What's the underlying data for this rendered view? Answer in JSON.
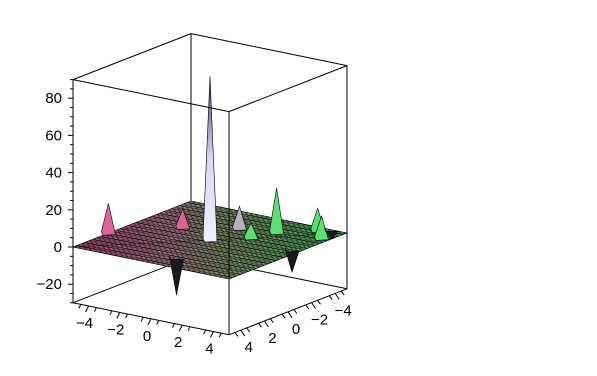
{
  "chart_data": {
    "type": "surface3d",
    "title": "",
    "xlabel": "",
    "ylabel": "",
    "zlabel": "",
    "x_range": [
      -5,
      5
    ],
    "y_range": [
      -5,
      5
    ],
    "z_range": [
      -30,
      90
    ],
    "grid": true,
    "z_ticks": [
      {
        "value": 80,
        "label": "80"
      },
      {
        "value": 60,
        "label": "60"
      },
      {
        "value": 40,
        "label": "40"
      },
      {
        "value": 20,
        "label": "20"
      },
      {
        "value": 0,
        "label": "0"
      },
      {
        "value": -20,
        "label": "−20"
      }
    ],
    "x_ticks": [
      {
        "value": -4,
        "label": "−4"
      },
      {
        "value": -2,
        "label": "−2"
      },
      {
        "value": 0,
        "label": "0"
      },
      {
        "value": 2,
        "label": "2"
      },
      {
        "value": 4,
        "label": "4"
      }
    ],
    "y_ticks": [
      {
        "value": 4,
        "label": "4"
      },
      {
        "value": 2,
        "label": "2"
      },
      {
        "value": 0,
        "label": "0"
      },
      {
        "value": -2,
        "label": "−2"
      },
      {
        "value": -4,
        "label": "−4"
      }
    ],
    "spikes": [
      {
        "x": 0,
        "y": 0,
        "z": 88
      },
      {
        "x": -5,
        "y": 2,
        "z": 16
      },
      {
        "x": -2.5,
        "y": -1,
        "z": 10
      },
      {
        "x": 0,
        "y": -2.5,
        "z": 12
      },
      {
        "x": 2,
        "y": -3,
        "z": 24
      },
      {
        "x": 3.5,
        "y": -4.5,
        "z": 12
      },
      {
        "x": 1.5,
        "y": -1.5,
        "z": 8
      },
      {
        "x": 4.5,
        "y": -3.5,
        "z": 12
      },
      {
        "x": 0.5,
        "y": 3.5,
        "z": -20
      },
      {
        "x": 4.5,
        "y": -1,
        "z": -12
      },
      {
        "x": 4,
        "y": -5,
        "z": -5
      }
    ],
    "colors": {
      "surface_pink": "#e0609a",
      "surface_peach": "#e8b8a8",
      "surface_green": "#50e070",
      "surface_lime": "#a8f060",
      "spike_top": "#d0d0f0",
      "spike_blue": "#3c3c8c",
      "mesh": "#000000"
    }
  }
}
